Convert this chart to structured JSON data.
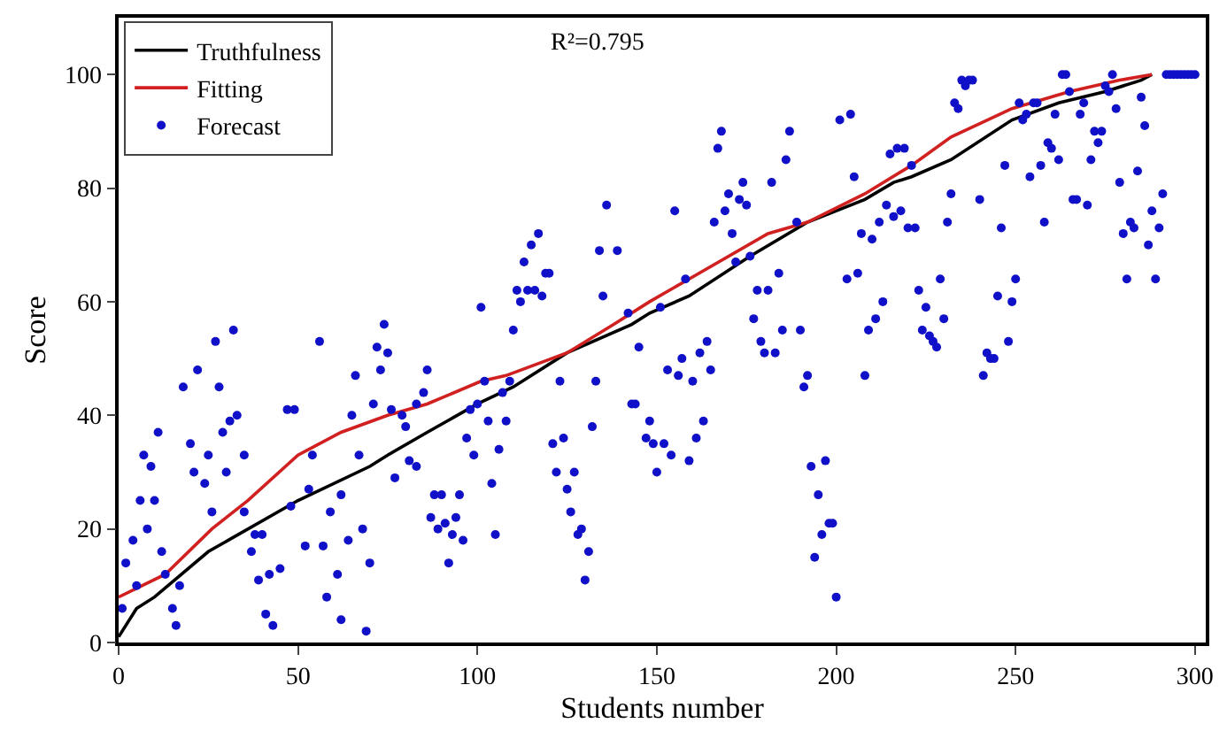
{
  "chart_data": {
    "type": "scatter",
    "xlabel": "Students number",
    "ylabel": "Score",
    "annotations": [
      "R²=0.795"
    ],
    "xlim": [
      0,
      303
    ],
    "xticks": [
      0,
      50,
      100,
      150,
      200,
      250,
      300
    ],
    "ylim": [
      0,
      110
    ],
    "yticks": [
      0,
      20,
      40,
      60,
      80,
      100
    ],
    "grid": false,
    "legend": "top left",
    "series": [
      {
        "name": "Truthfulness",
        "type": "line",
        "color": "#000000",
        "line_style": "solid",
        "x": [
          0,
          5,
          10,
          25,
          50,
          70,
          75,
          86,
          100,
          110,
          125,
          143,
          148,
          159,
          176,
          192,
          208,
          216,
          221,
          232,
          249,
          262,
          275,
          285,
          288
        ],
        "values": [
          1,
          6,
          8,
          16,
          25,
          31,
          33,
          37,
          42,
          45,
          51,
          56,
          58,
          61,
          68,
          74,
          78,
          81,
          82,
          85,
          92,
          95,
          97,
          99,
          100
        ]
      },
      {
        "name": "Fitting",
        "type": "line",
        "color": "#d02020",
        "line_style": "solid",
        "x": [
          0,
          13,
          26,
          36,
          50,
          62,
          75,
          86,
          101,
          108,
          125,
          138,
          148,
          159,
          181,
          192,
          208,
          221,
          232,
          249,
          265,
          279,
          288
        ],
        "values": [
          8,
          12,
          20,
          25,
          33,
          37,
          40,
          42,
          46,
          47,
          51,
          56,
          60,
          64,
          72,
          74,
          79,
          84,
          89,
          94,
          97,
          99,
          100
        ]
      },
      {
        "name": "Forecast",
        "marker": "circle",
        "color": "#1010c8",
        "x": [
          1,
          2,
          4,
          5,
          6,
          7,
          8,
          9,
          10,
          11,
          12,
          13,
          15,
          16,
          17,
          18,
          20,
          21,
          22,
          24,
          25,
          26,
          27,
          28,
          29,
          30,
          31,
          32,
          33,
          35,
          35,
          37,
          38,
          39,
          40,
          41,
          42,
          43,
          45,
          47,
          48,
          49,
          52,
          53,
          54,
          56,
          57,
          58,
          59,
          61,
          62,
          62,
          64,
          65,
          66,
          67,
          68,
          69,
          70,
          71,
          72,
          73,
          74,
          75,
          76,
          77,
          79,
          80,
          81,
          83,
          83,
          85,
          86,
          87,
          88,
          89,
          90,
          91,
          92,
          93,
          94,
          95,
          96,
          97,
          98,
          99,
          100,
          101,
          102,
          103,
          104,
          105,
          106,
          107,
          108,
          109,
          110,
          111,
          112,
          113,
          114,
          115,
          116,
          117,
          118,
          119,
          120,
          121,
          122,
          123,
          124,
          125,
          126,
          127,
          128,
          129,
          130,
          131,
          132,
          133,
          134,
          135,
          136,
          139,
          142,
          143,
          144,
          145,
          147,
          148,
          149,
          150,
          151,
          152,
          153,
          154,
          155,
          156,
          157,
          158,
          159,
          160,
          161,
          162,
          163,
          164,
          165,
          166,
          167,
          168,
          169,
          170,
          171,
          172,
          173,
          174,
          175,
          176,
          177,
          178,
          179,
          180,
          181,
          182,
          183,
          184,
          185,
          186,
          187,
          189,
          190,
          191,
          192,
          193,
          194,
          195,
          196,
          197,
          198,
          199,
          200,
          201,
          203,
          204,
          205,
          206,
          207,
          208,
          209,
          210,
          211,
          212,
          213,
          214,
          215,
          216,
          217,
          218,
          219,
          220,
          221,
          222,
          223,
          224,
          225,
          226,
          227,
          228,
          229,
          230,
          231,
          232,
          233,
          234,
          235,
          236,
          237,
          238,
          240,
          241,
          242,
          243,
          244,
          245,
          246,
          247,
          248,
          249,
          250,
          251,
          252,
          253,
          254,
          255,
          256,
          257,
          258,
          259,
          260,
          261,
          262,
          263,
          264,
          265,
          266,
          267,
          268,
          269,
          270,
          271,
          272,
          273,
          274,
          275,
          276,
          277,
          278,
          279,
          280,
          281,
          282,
          283,
          284,
          285,
          286,
          287,
          288,
          289,
          290,
          291,
          292,
          293,
          294,
          295,
          296,
          297,
          298,
          299,
          300
        ],
        "values": [
          6,
          14,
          18,
          10,
          25,
          33,
          20,
          31,
          25,
          37,
          16,
          12,
          6,
          3,
          10,
          45,
          35,
          30,
          48,
          28,
          33,
          23,
          53,
          45,
          37,
          30,
          39,
          55,
          40,
          33,
          23,
          16,
          19,
          11,
          19,
          5,
          12,
          3,
          13,
          41,
          24,
          41,
          17,
          27,
          33,
          53,
          17,
          8,
          23,
          12,
          4,
          26,
          18,
          40,
          47,
          33,
          20,
          2,
          14,
          42,
          52,
          48,
          56,
          51,
          41,
          29,
          40,
          38,
          32,
          31,
          42,
          44,
          48,
          22,
          26,
          20,
          26,
          21,
          14,
          19,
          22,
          26,
          18,
          36,
          41,
          33,
          42,
          59,
          46,
          39,
          28,
          19,
          34,
          44,
          39,
          46,
          55,
          62,
          60,
          67,
          62,
          70,
          62,
          72,
          61,
          65,
          65,
          35,
          30,
          46,
          36,
          27,
          23,
          30,
          19,
          20,
          11,
          16,
          38,
          46,
          69,
          61,
          77,
          69,
          58,
          42,
          42,
          52,
          36,
          39,
          35,
          30,
          59,
          35,
          48,
          33,
          76,
          47,
          50,
          64,
          32,
          46,
          36,
          51,
          39,
          53,
          48,
          74,
          87,
          90,
          76,
          79,
          72,
          67,
          78,
          81,
          77,
          68,
          57,
          62,
          53,
          51,
          62,
          81,
          51,
          65,
          55,
          85,
          90,
          74,
          55,
          45,
          47,
          31,
          15,
          26,
          19,
          32,
          21,
          21,
          8,
          92,
          64,
          93,
          82,
          65,
          72,
          47,
          55,
          71,
          57,
          74,
          60,
          77,
          86,
          75,
          87,
          76,
          87,
          73,
          84,
          73,
          62,
          55,
          59,
          54,
          53,
          52,
          64,
          57,
          74,
          79,
          95,
          94,
          99,
          98,
          99,
          99,
          78,
          47,
          51,
          50,
          50,
          61,
          73,
          84,
          53,
          60,
          64,
          95,
          92,
          93,
          82,
          95,
          95,
          84,
          74,
          88,
          87,
          93,
          85,
          100,
          100,
          97,
          78,
          78,
          93,
          95,
          77,
          85,
          90,
          88,
          90,
          98,
          97,
          100,
          94,
          81,
          72,
          64,
          74,
          73,
          83,
          96,
          91,
          70,
          76,
          64,
          73,
          79,
          100,
          100,
          100,
          100,
          100,
          100,
          100,
          100,
          100
        ]
      }
    ]
  }
}
